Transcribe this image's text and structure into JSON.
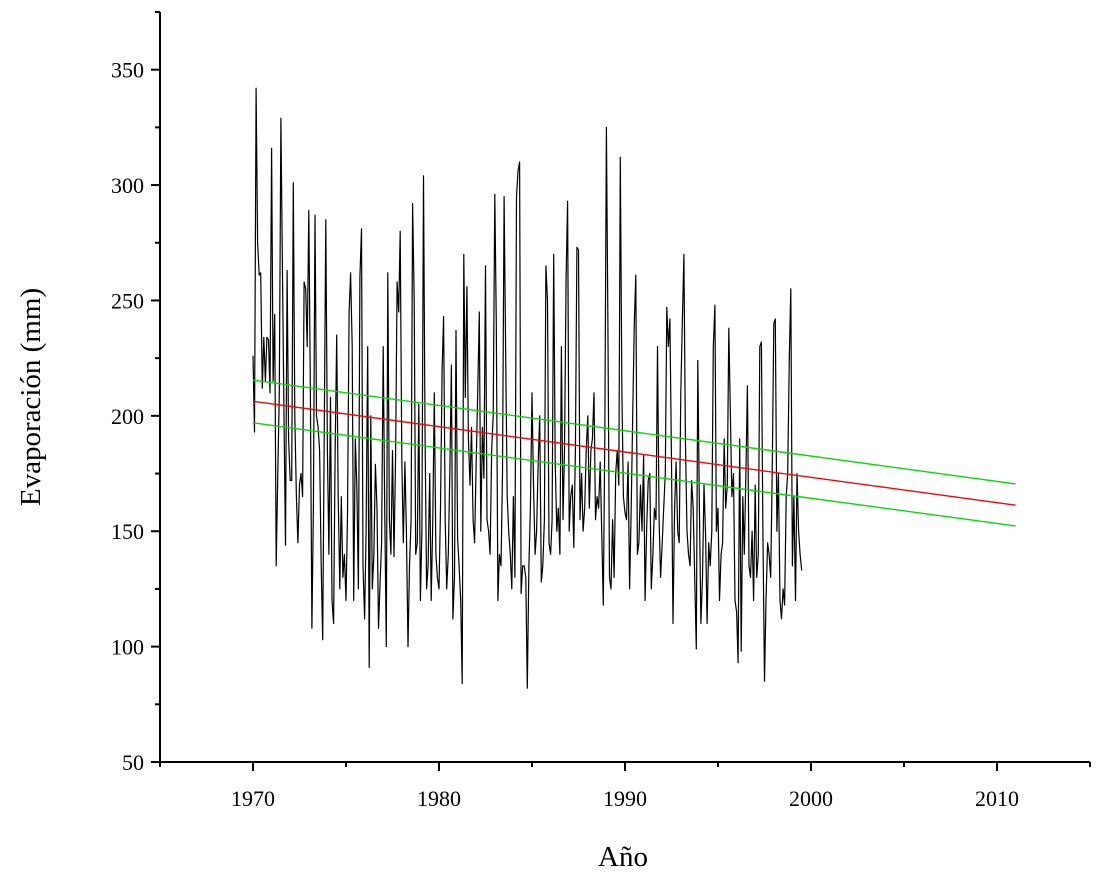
{
  "chart_data": {
    "type": "line",
    "title": "",
    "xlabel": "Año",
    "ylabel": "Evaporación (mm)",
    "xlim": [
      1965,
      2015
    ],
    "ylim": [
      50,
      375
    ],
    "x_ticks": [
      1970,
      1980,
      1990,
      2000,
      2010
    ],
    "y_ticks": [
      50,
      100,
      150,
      200,
      250,
      300,
      350
    ],
    "x_tick_labels": [
      "1970",
      "1980",
      "1990",
      "2000",
      "2010"
    ],
    "y_tick_labels": [
      "50",
      "100",
      "150",
      "200",
      "250",
      "300",
      "350"
    ],
    "grid": false,
    "legend": "none",
    "series": [
      {
        "role": "data",
        "color": "#000000",
        "x_start": 1970.0,
        "x_step": 0.0833333,
        "values": [
          226,
          193,
          342,
          275,
          261,
          262,
          212,
          234,
          215,
          234,
          233,
          210,
          316,
          215,
          244,
          135,
          175,
          210,
          329,
          265,
          200,
          144,
          263,
          190,
          172,
          172,
          301,
          200,
          165,
          145,
          170,
          175,
          165,
          258,
          255,
          230,
          289,
          215,
          108,
          160,
          287,
          200,
          195,
          185,
          135,
          103,
          196,
          285,
          185,
          140,
          208,
          120,
          110,
          183,
          235,
          165,
          125,
          165,
          130,
          140,
          120,
          157,
          245,
          262,
          230,
          120,
          190,
          170,
          125,
          260,
          281,
          135,
          112,
          150,
          230,
          91,
          200,
          125,
          140,
          179,
          160,
          108,
          128,
          145,
          230,
          160,
          100,
          262,
          155,
          140,
          185,
          139,
          183,
          258,
          245,
          280,
          182,
          145,
          180,
          150,
          100,
          135,
          155,
          292,
          250,
          140,
          145,
          205,
          120,
          150,
          304,
          195,
          125,
          135,
          175,
          120,
          155,
          210,
          140,
          130,
          125,
          160,
          220,
          243,
          155,
          125,
          140,
          175,
          222,
          112,
          130,
          237,
          147,
          135,
          120,
          84,
          270,
          208,
          256,
          190,
          170,
          195,
          155,
          145,
          180,
          210,
          245,
          150,
          195,
          173,
          265,
          155,
          150,
          140,
          186,
          200,
          296,
          240,
          120,
          140,
          135,
          175,
          295,
          230,
          165,
          150,
          140,
          125,
          165,
          130,
          295,
          306,
          310,
          123,
          135,
          135,
          130,
          82,
          135,
          160,
          210,
          170,
          140,
          150,
          180,
          200,
          128,
          135,
          155,
          265,
          250,
          145,
          140,
          155,
          270,
          180,
          150,
          160,
          140,
          230,
          155,
          185,
          260,
          293,
          150,
          165,
          170,
          143,
          185,
          273,
          272,
          155,
          175,
          150,
          160,
          185,
          200,
          160,
          185,
          190,
          210,
          155,
          165,
          160,
          180,
          150,
          118,
          190,
          325,
          240,
          130,
          125,
          155,
          130,
          175,
          185,
          170,
          312,
          210,
          165,
          158,
          155,
          180,
          125,
          160,
          200,
          240,
          261,
          140,
          145,
          170,
          150,
          183,
          120,
          152,
          172,
          175,
          125,
          140,
          160,
          155,
          230,
          155,
          130,
          145,
          160,
          175,
          247,
          230,
          242,
          180,
          110,
          160,
          180,
          150,
          145,
          210,
          240,
          270,
          190,
          150,
          140,
          135,
          172,
          160,
          130,
          99,
          224,
          160,
          110,
          130,
          170,
          148,
          110,
          145,
          135,
          150,
          230,
          248,
          150,
          160,
          120,
          140,
          145,
          190,
          160,
          170,
          238,
          200,
          165,
          175,
          120,
          115,
          93,
          190,
          98,
          165,
          140,
          175,
          213,
          135,
          130,
          150,
          120,
          170,
          130,
          140,
          230,
          232,
          150,
          85,
          120,
          145,
          140,
          130,
          175,
          240,
          242,
          150,
          175,
          120,
          112,
          125,
          118,
          165,
          175,
          225,
          255,
          135,
          165,
          120,
          175,
          150,
          140,
          133
        ]
      },
      {
        "role": "trend",
        "color": "#ff0000",
        "x": [
          1970,
          2011
        ],
        "y": [
          206.3,
          161.3
        ]
      },
      {
        "role": "upper-bound",
        "color": "#00dd00",
        "x": [
          1970,
          2011
        ],
        "y": [
          215.5,
          170.5
        ]
      },
      {
        "role": "lower-bound",
        "color": "#00dd00",
        "x": [
          1970,
          2011
        ],
        "y": [
          197.0,
          152.3
        ]
      }
    ]
  }
}
